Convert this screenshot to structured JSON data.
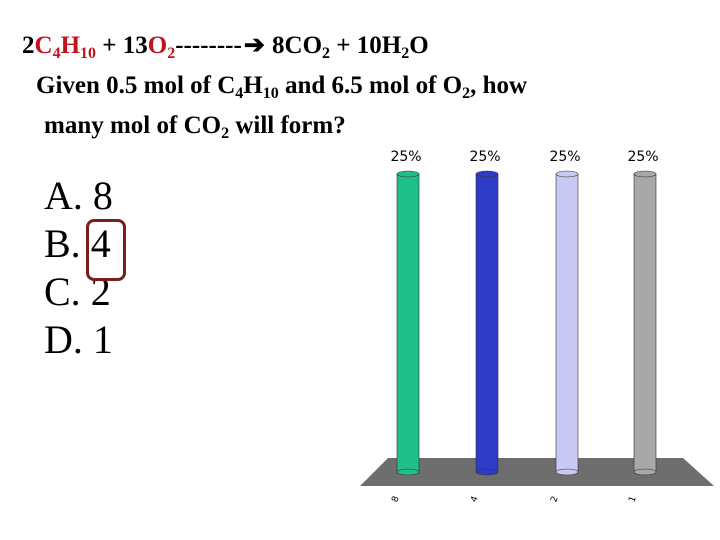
{
  "equation": {
    "coef1": "2",
    "c": "C",
    "c_sub": "4",
    "h": "H",
    "h_sub": "10",
    "plus1": " + 13",
    "o2": "O",
    "o2_sub": "2",
    "dashes": "--------",
    "arrow": "➔",
    "product1": " 8CO",
    "product1_sub": "2",
    "plus2": " + 10H",
    "h2o_sub": "2",
    "h2o_end": "O"
  },
  "question": {
    "line1_a": "Given 0.5 mol of C",
    "line1_sub1": "4",
    "line1_b": "H",
    "line1_sub2": "10",
    "line1_c": " and 6.5 mol of O",
    "line1_sub3": "2",
    "line1_d": ", how",
    "line2_a": "many mol of CO",
    "line2_sub": "2",
    "line2_b": " will form?"
  },
  "options": [
    {
      "letter": "A.",
      "value": "8"
    },
    {
      "letter": "B.",
      "value": "4"
    },
    {
      "letter": "C.",
      "value": "2"
    },
    {
      "letter": "D.",
      "value": "1"
    }
  ],
  "highlighted_option": "B",
  "chart_data": {
    "type": "bar",
    "categories": [
      "8",
      "4",
      "2",
      "1"
    ],
    "values": [
      25,
      25,
      25,
      25
    ],
    "value_labels": [
      "25%",
      "25%",
      "25%",
      "25%"
    ],
    "ylim": [
      0,
      25
    ],
    "colors": [
      "#1fbf8a",
      "#2d3bc7",
      "#c8c8f4",
      "#a8a8a8"
    ],
    "floor_color": "#6e6e6e",
    "grid": false,
    "legend": false,
    "title": "",
    "xlabel": "",
    "ylabel": ""
  }
}
